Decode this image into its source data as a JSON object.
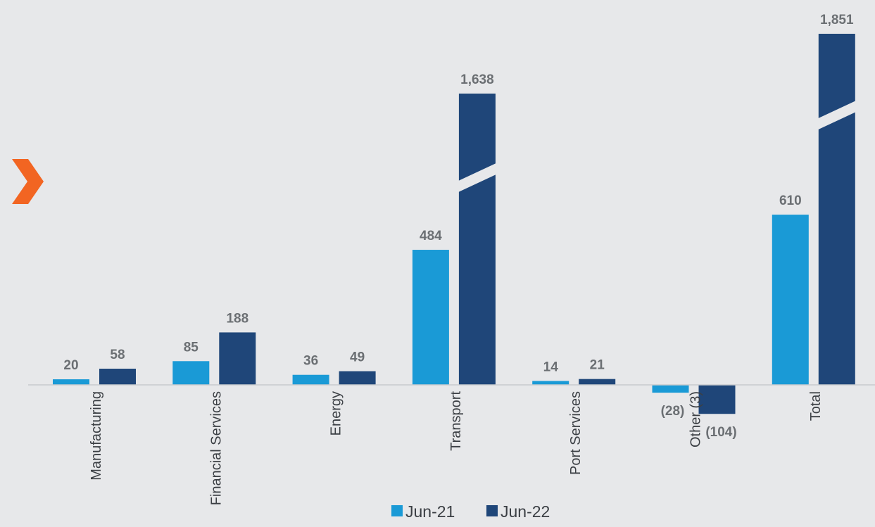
{
  "chart_data": {
    "type": "bar",
    "categories": [
      "Manufacturing",
      "Financial Services",
      "Energy",
      "Transport",
      "Port Services",
      "Other (3)",
      "Total"
    ],
    "series": [
      {
        "name": "Jun-21",
        "values": [
          20,
          85,
          36,
          484,
          14,
          -28,
          610
        ],
        "labels": [
          "20",
          "85",
          "36",
          "484",
          "14",
          "(28)",
          "610"
        ],
        "color": "#1a9ad6"
      },
      {
        "name": "Jun-22",
        "values": [
          58,
          188,
          49,
          1638,
          21,
          -104,
          1851
        ],
        "labels": [
          "58",
          "188",
          "49",
          "1,638",
          "21",
          "(104)",
          "1,851"
        ],
        "color": "#1f4679"
      }
    ],
    "axis_break": true,
    "legend_position": "bottom",
    "grid": false
  },
  "accent": {
    "chevron_icon": "chevron-right-icon",
    "color": "#f26522"
  }
}
